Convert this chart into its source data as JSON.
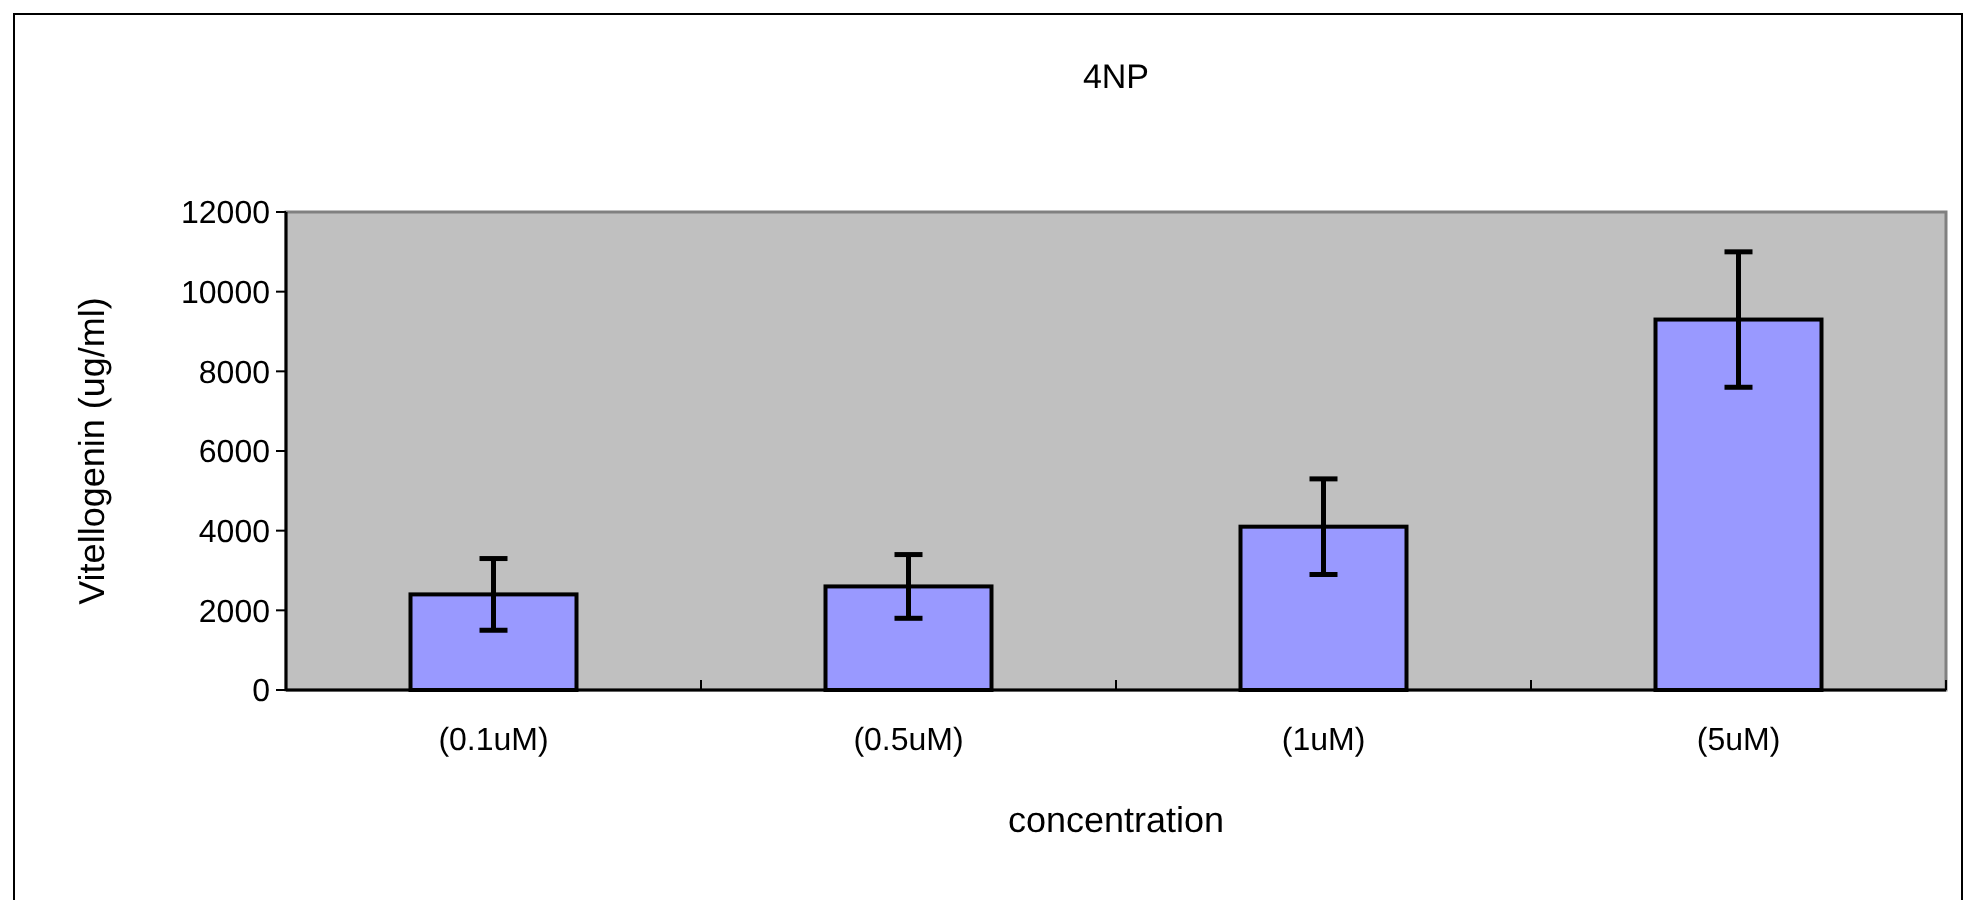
{
  "chart_data": {
    "type": "bar",
    "title": "4NP",
    "xlabel": "concentration",
    "ylabel": "Vitellogenin (ug/ml)",
    "categories": [
      "(0.1uM)",
      "(0.5uM)",
      "(1uM)",
      "(5uM)"
    ],
    "values": [
      2400,
      2600,
      4100,
      9300
    ],
    "errors": [
      900,
      800,
      1200,
      1700
    ],
    "color": "#9999ff",
    "ylim": [
      0,
      12000
    ],
    "yticks": [
      0,
      2000,
      4000,
      6000,
      8000,
      10000,
      12000
    ],
    "grid": false
  }
}
